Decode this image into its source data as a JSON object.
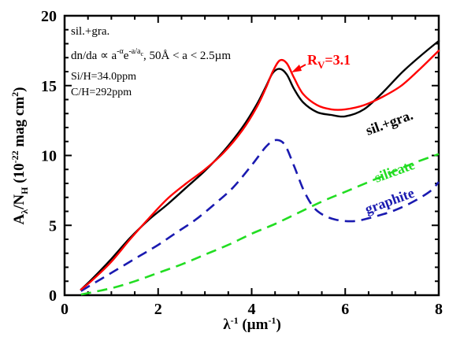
{
  "chart_data": {
    "type": "line",
    "xlabel": "λ⁻¹ (µm⁻¹)",
    "ylabel": "Aλ/NH (10⁻²² mag cm²)",
    "xlim": [
      0,
      8
    ],
    "ylim": [
      0,
      20
    ],
    "xticks": [
      "0",
      "2",
      "4",
      "6",
      "8"
    ],
    "yticks": [
      "0",
      "5",
      "10",
      "15",
      "20"
    ],
    "grid": false,
    "legend": "none",
    "annotations": {
      "model": "sil.+gra.",
      "size_dist": "dn/da ∝ a⁻ᵅe⁻ᵃ/ᵃc,  50Å < a < 2.5µm",
      "si_h": "Si/H=34.0ppm",
      "c_h": "C/H=292ppm"
    },
    "series": [
      {
        "name": "RV=3.1",
        "color": "#ff0000",
        "style": "solid",
        "x": [
          0.35,
          0.6,
          1.0,
          1.4,
          1.8,
          2.2,
          2.6,
          3.0,
          3.4,
          3.8,
          4.1,
          4.3,
          4.45,
          4.6,
          4.75,
          4.9,
          5.1,
          5.4,
          5.7,
          6.0,
          6.4,
          6.8,
          7.2,
          7.6,
          8.0
        ],
        "y": [
          0.4,
          1.1,
          2.4,
          4.0,
          5.5,
          6.9,
          8.0,
          9.0,
          10.2,
          11.8,
          13.4,
          14.8,
          16.0,
          16.8,
          16.6,
          15.6,
          14.4,
          13.6,
          13.3,
          13.3,
          13.6,
          14.2,
          15.0,
          16.2,
          17.5
        ]
      },
      {
        "name": "sil.+gra.",
        "color": "#000000",
        "style": "solid",
        "x": [
          0.35,
          0.6,
          1.0,
          1.4,
          1.8,
          2.2,
          2.6,
          3.0,
          3.4,
          3.8,
          4.1,
          4.3,
          4.45,
          4.6,
          4.75,
          4.9,
          5.1,
          5.4,
          5.7,
          6.0,
          6.4,
          6.8,
          7.2,
          7.6,
          8.0
        ],
        "y": [
          0.4,
          1.2,
          2.6,
          4.1,
          5.4,
          6.5,
          7.7,
          8.9,
          10.3,
          12.0,
          13.6,
          14.9,
          15.9,
          16.2,
          15.8,
          14.8,
          13.8,
          13.1,
          12.9,
          12.8,
          13.3,
          14.5,
          15.9,
          17.1,
          18.2
        ]
      },
      {
        "name": "graphite",
        "color": "#1a1ab0",
        "style": "dashed",
        "x": [
          0.35,
          0.8,
          1.2,
          1.6,
          2.0,
          2.4,
          2.8,
          3.2,
          3.6,
          4.0,
          4.3,
          4.5,
          4.7,
          4.9,
          5.1,
          5.3,
          5.5,
          5.8,
          6.2,
          6.6,
          7.0,
          7.4,
          7.8,
          8.0
        ],
        "y": [
          0.3,
          1.2,
          2.0,
          2.8,
          3.6,
          4.5,
          5.4,
          6.5,
          7.7,
          9.3,
          10.6,
          11.1,
          10.8,
          9.3,
          7.6,
          6.4,
          5.8,
          5.4,
          5.3,
          5.6,
          6.0,
          6.6,
          7.4,
          8.1
        ]
      },
      {
        "name": "silicate",
        "color": "#22dd22",
        "style": "dashed",
        "x": [
          0.35,
          1.0,
          1.5,
          2.0,
          2.5,
          3.0,
          3.5,
          4.0,
          4.5,
          5.0,
          5.5,
          6.0,
          6.5,
          7.0,
          7.5,
          8.0
        ],
        "y": [
          0.05,
          0.5,
          1.0,
          1.6,
          2.2,
          2.9,
          3.6,
          4.4,
          5.1,
          5.9,
          6.7,
          7.4,
          8.1,
          8.8,
          9.5,
          10.1
        ]
      }
    ],
    "labels": {
      "rv": "RV=3.1",
      "silgra": "sil.+gra.",
      "silicate": "silicate",
      "graphite": "graphite"
    }
  }
}
